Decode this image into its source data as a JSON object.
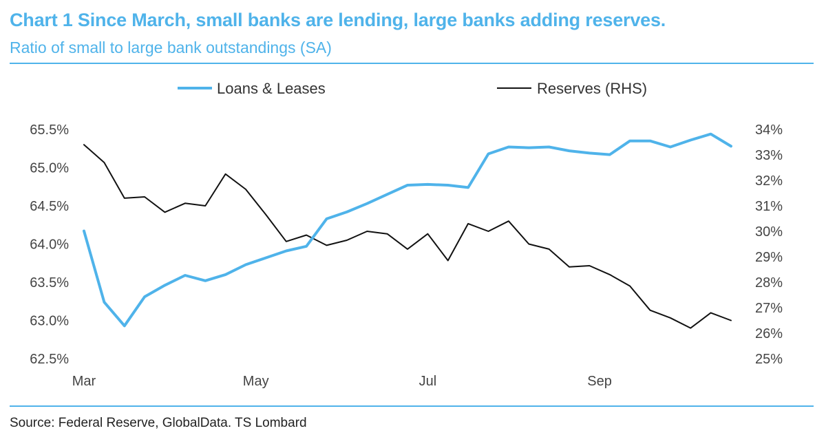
{
  "header": {
    "title": "Chart 1 Since March, small banks are lending, large banks adding reserves.",
    "subtitle": "Ratio of small to large bank outstandings (SA)"
  },
  "footer": {
    "source": "Source: Federal Reserve, GlobalData. TS Lombard"
  },
  "colors": {
    "accent": "#4fb3ea",
    "loans": "#4fb3ea",
    "reserves": "#111111"
  },
  "chart_data": {
    "type": "line",
    "legend_position": "top",
    "grid": false,
    "x_ticks": [
      "Mar",
      "May",
      "Jul",
      "Sep"
    ],
    "x_tick_index": [
      0,
      8.5,
      17,
      25.5
    ],
    "ylim_left": [
      62.5,
      65.5
    ],
    "ylim_right": [
      25,
      34
    ],
    "y_ticks_left": [
      "62.5%",
      "63.0%",
      "63.5%",
      "64.0%",
      "64.5%",
      "65.0%",
      "65.5%"
    ],
    "y_ticks_right": [
      "25%",
      "26%",
      "27%",
      "28%",
      "29%",
      "30%",
      "31%",
      "32%",
      "33%",
      "34%"
    ],
    "series": [
      {
        "name": "Loans & Leases",
        "axis": "left",
        "values": [
          64.17,
          63.24,
          62.93,
          63.31,
          63.46,
          63.59,
          63.52,
          63.6,
          63.73,
          63.82,
          63.91,
          63.97,
          64.33,
          64.42,
          64.53,
          64.65,
          64.77,
          64.78,
          64.77,
          64.74,
          65.18,
          65.27,
          65.26,
          65.27,
          65.22,
          65.19,
          65.17,
          65.35,
          65.35,
          65.27,
          65.36,
          65.44,
          65.28
        ]
      },
      {
        "name": "Reserves (RHS)",
        "axis": "right",
        "values": [
          33.4,
          32.7,
          31.3,
          31.35,
          30.75,
          31.1,
          31.0,
          32.25,
          31.65,
          30.65,
          29.6,
          29.85,
          29.45,
          29.65,
          30.0,
          29.9,
          29.3,
          29.9,
          28.85,
          30.3,
          30.0,
          30.4,
          29.5,
          29.3,
          28.6,
          28.65,
          28.3,
          27.85,
          26.9,
          26.6,
          26.2,
          26.8,
          26.5
        ]
      }
    ]
  }
}
